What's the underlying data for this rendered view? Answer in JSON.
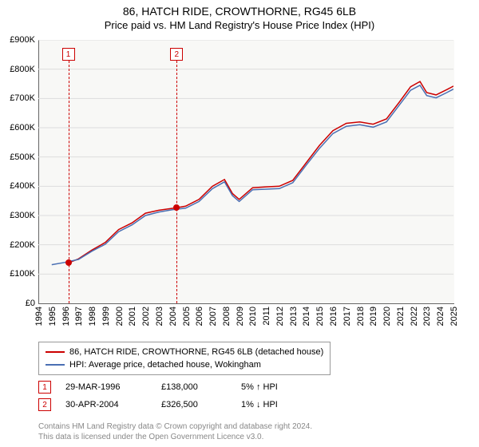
{
  "title": "86, HATCH RIDE, CROWTHORNE, RG45 6LB",
  "subtitle": "Price paid vs. HM Land Registry's House Price Index (HPI)",
  "chart": {
    "type": "line",
    "background_color": "#f8f8f6",
    "grid_color": "#dddddd",
    "ylim": [
      0,
      900000
    ],
    "ytick_step": 100000,
    "ytick_labels": [
      "£0",
      "£100K",
      "£200K",
      "£300K",
      "£400K",
      "£500K",
      "£600K",
      "£700K",
      "£800K",
      "£900K"
    ],
    "xlim": [
      1994,
      2025
    ],
    "xtick_step": 1,
    "xtick_labels": [
      "1994",
      "1995",
      "1996",
      "1997",
      "1998",
      "1999",
      "2000",
      "2001",
      "2002",
      "2003",
      "2004",
      "2005",
      "2006",
      "2007",
      "2008",
      "2009",
      "2010",
      "2011",
      "2012",
      "2013",
      "2014",
      "2015",
      "2016",
      "2017",
      "2018",
      "2019",
      "2020",
      "2021",
      "2022",
      "2023",
      "2024",
      "2025"
    ],
    "series": [
      {
        "name": "86, HATCH RIDE, CROWTHORNE, RG45 6LB (detached house)",
        "color": "#cc0000",
        "line_width": 1.5,
        "data": [
          [
            1996.24,
            138000
          ],
          [
            1997,
            152000
          ],
          [
            1998,
            182000
          ],
          [
            1999,
            208000
          ],
          [
            2000,
            252000
          ],
          [
            2001,
            275000
          ],
          [
            2002,
            308000
          ],
          [
            2003,
            318000
          ],
          [
            2004.33,
            326500
          ],
          [
            2005,
            332000
          ],
          [
            2006,
            355000
          ],
          [
            2007,
            400000
          ],
          [
            2007.9,
            423000
          ],
          [
            2008.5,
            375000
          ],
          [
            2009.0,
            355000
          ],
          [
            2010,
            395000
          ],
          [
            2011,
            398000
          ],
          [
            2012,
            400000
          ],
          [
            2013,
            420000
          ],
          [
            2014,
            480000
          ],
          [
            2015,
            540000
          ],
          [
            2016,
            590000
          ],
          [
            2017,
            615000
          ],
          [
            2018,
            620000
          ],
          [
            2019,
            612000
          ],
          [
            2020,
            630000
          ],
          [
            2021,
            690000
          ],
          [
            2021.8,
            740000
          ],
          [
            2022.5,
            758000
          ],
          [
            2023,
            720000
          ],
          [
            2023.7,
            712000
          ],
          [
            2024.5,
            730000
          ],
          [
            2025,
            742000
          ]
        ]
      },
      {
        "name": "HPI: Average price, detached house, Wokingham",
        "color": "#4a6fb3",
        "line_width": 1.5,
        "data": [
          [
            1995,
            132000
          ],
          [
            1996,
            140000
          ],
          [
            1997,
            150000
          ],
          [
            1998,
            178000
          ],
          [
            1999,
            202000
          ],
          [
            2000,
            245000
          ],
          [
            2001,
            268000
          ],
          [
            2002,
            300000
          ],
          [
            2003,
            312000
          ],
          [
            2004,
            320000
          ],
          [
            2005,
            325000
          ],
          [
            2006,
            348000
          ],
          [
            2007,
            392000
          ],
          [
            2007.9,
            415000
          ],
          [
            2008.5,
            368000
          ],
          [
            2009.0,
            348000
          ],
          [
            2010,
            388000
          ],
          [
            2011,
            390000
          ],
          [
            2012,
            392000
          ],
          [
            2013,
            412000
          ],
          [
            2014,
            472000
          ],
          [
            2015,
            530000
          ],
          [
            2016,
            580000
          ],
          [
            2017,
            605000
          ],
          [
            2018,
            610000
          ],
          [
            2019,
            602000
          ],
          [
            2020,
            620000
          ],
          [
            2021,
            680000
          ],
          [
            2021.8,
            728000
          ],
          [
            2022.5,
            745000
          ],
          [
            2023,
            710000
          ],
          [
            2023.7,
            702000
          ],
          [
            2024.5,
            720000
          ],
          [
            2025,
            732000
          ]
        ]
      }
    ],
    "markers": [
      {
        "id": "1",
        "x": 1996.24,
        "y": 138000,
        "badge_top": 10
      },
      {
        "id": "2",
        "x": 2004.33,
        "y": 326500,
        "badge_top": 10
      }
    ]
  },
  "legend": {
    "items": [
      {
        "color": "#cc0000",
        "label": "86, HATCH RIDE, CROWTHORNE, RG45 6LB (detached house)"
      },
      {
        "color": "#4a6fb3",
        "label": "HPI: Average price, detached house, Wokingham"
      }
    ]
  },
  "transactions": [
    {
      "id": "1",
      "date": "29-MAR-1996",
      "price": "£138,000",
      "delta": "5% ↑ HPI"
    },
    {
      "id": "2",
      "date": "30-APR-2004",
      "price": "£326,500",
      "delta": "1% ↓ HPI"
    }
  ],
  "footer": {
    "line1": "Contains HM Land Registry data © Crown copyright and database right 2024.",
    "line2": "This data is licensed under the Open Government Licence v3.0."
  }
}
